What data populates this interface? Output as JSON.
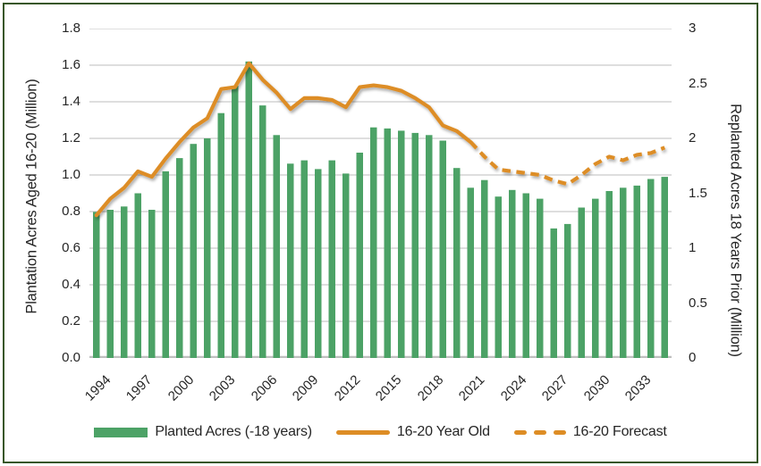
{
  "colors": {
    "bar_green": "#4CA266",
    "line_orange": "#DD8D25",
    "frame_border": "#375623",
    "gridline": "#C9C9C9",
    "axis_line": "#BFBFBF",
    "text": "#262626"
  },
  "chart_data": {
    "type": "combo-bar-line",
    "grid": true,
    "legend_position": "bottom",
    "categories": [
      "1994",
      "1995",
      "1996",
      "1997",
      "1998",
      "1999",
      "2000",
      "2001",
      "2002",
      "2003",
      "2004",
      "2005",
      "2006",
      "2007",
      "2008",
      "2009",
      "2010",
      "2011",
      "2012",
      "2013",
      "2014",
      "2015",
      "2016",
      "2017",
      "2018",
      "2019",
      "2020",
      "2021",
      "2022",
      "2023",
      "2024",
      "2025",
      "2026",
      "2027",
      "2028",
      "2029",
      "2030",
      "2031",
      "2032",
      "2033",
      "2034",
      "2035"
    ],
    "x_tick_labels": [
      "1994",
      "1997",
      "2000",
      "2003",
      "2006",
      "2009",
      "2012",
      "2015",
      "2018",
      "2021",
      "2024",
      "2027",
      "2030",
      "2033"
    ],
    "left_axis": {
      "title": "Plantation Acres Aged 16-20 (Million)",
      "min": 0,
      "max": 1.8,
      "step": 0.2,
      "tick_labels": [
        "1.8",
        "1.6",
        "1.4",
        "1.2",
        "1.0",
        "0.8",
        "0.6",
        "0.4",
        "0.2",
        "0.0"
      ]
    },
    "right_axis": {
      "title": "Replanted Acres 18 Years Prior (Million)",
      "min": 0,
      "max": 3,
      "step": 0.5,
      "tick_labels": [
        "3",
        "2.5",
        "2",
        "1.5",
        "1",
        "0.5",
        "0"
      ]
    },
    "series": [
      {
        "name": "Planted Acres (-18 years)",
        "type": "bar",
        "axis": "right",
        "color": "#4CA266",
        "x_start": "1994",
        "values": [
          1.33,
          1.35,
          1.38,
          1.5,
          1.35,
          1.7,
          1.82,
          1.95,
          2.0,
          2.23,
          2.48,
          2.7,
          2.3,
          2.03,
          1.77,
          1.8,
          1.72,
          1.8,
          1.68,
          1.87,
          2.1,
          2.09,
          2.07,
          2.05,
          2.03,
          1.98,
          1.73,
          1.55,
          1.62,
          1.47,
          1.53,
          1.5,
          1.45,
          1.18,
          1.22,
          1.37,
          1.45,
          1.52,
          1.55,
          1.57,
          1.63,
          1.65
        ]
      },
      {
        "name": "16-20 Year Old",
        "type": "line",
        "style": "solid",
        "axis": "left",
        "color": "#DD8D25",
        "x_start": "1994",
        "values": [
          0.78,
          0.87,
          0.93,
          1.02,
          0.99,
          1.09,
          1.18,
          1.26,
          1.31,
          1.47,
          1.48,
          1.61,
          1.52,
          1.45,
          1.36,
          1.42,
          1.42,
          1.41,
          1.37,
          1.48,
          1.49,
          1.48,
          1.46,
          1.42,
          1.37,
          1.27,
          1.24,
          1.18
        ]
      },
      {
        "name": "16-20 Forecast",
        "type": "line",
        "style": "dashed",
        "axis": "left",
        "color": "#DD8D25",
        "x_start": "2021",
        "values": [
          1.18,
          1.1,
          1.03,
          1.02,
          1.01,
          1.0,
          0.97,
          0.95,
          1.0,
          1.06,
          1.1,
          1.08,
          1.11,
          1.12,
          1.15
        ]
      }
    ]
  }
}
